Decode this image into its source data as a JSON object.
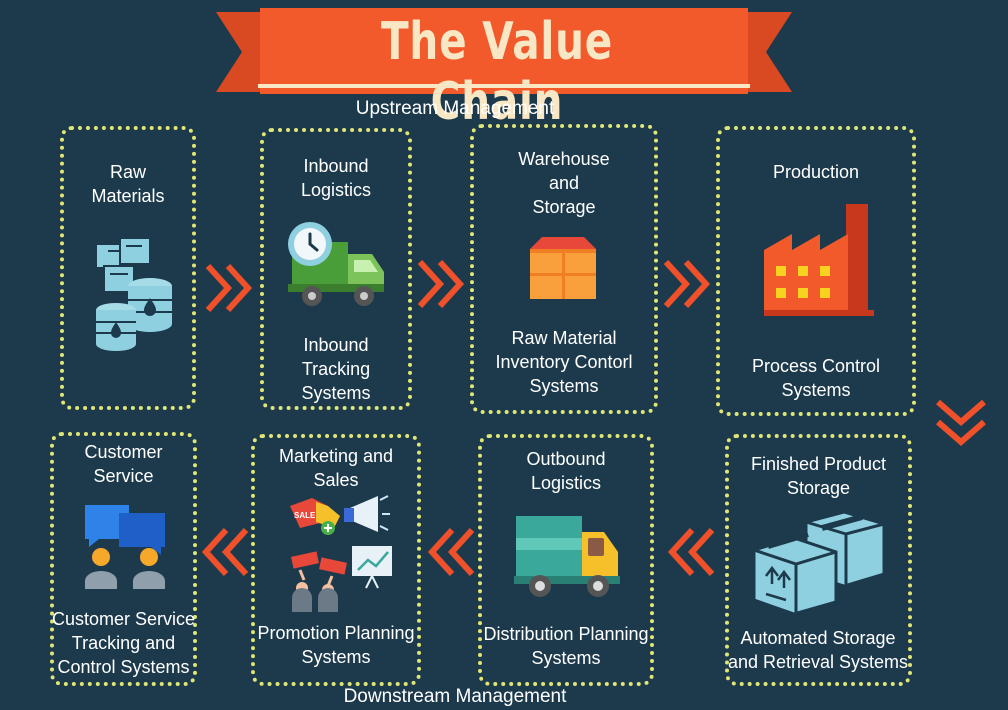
{
  "title": "The Value Chain",
  "sections": {
    "upstream": "Upstream Management",
    "downstream": "Downstream Management"
  },
  "stages": {
    "raw_materials": {
      "title": [
        "Raw",
        "Materials"
      ]
    },
    "inbound": {
      "title": [
        "Inbound",
        "Logistics"
      ],
      "system": [
        "Inbound",
        "Tracking",
        "Systems"
      ]
    },
    "warehouse": {
      "title": [
        "Warehouse",
        "and",
        "Storage"
      ],
      "system": [
        "Raw Material",
        "Inventory Contorl",
        "Systems"
      ]
    },
    "production": {
      "title": [
        "Production"
      ],
      "system": [
        "Process Control",
        "Systems"
      ]
    },
    "finished": {
      "title": [
        "Finished Product",
        "Storage"
      ],
      "system": [
        "Automated Storage",
        "and Retrieval Systems"
      ]
    },
    "outbound": {
      "title": [
        "Outbound",
        "Logistics"
      ],
      "system": [
        "Distribution Planning",
        "Systems"
      ]
    },
    "marketing": {
      "title": [
        "Marketing and",
        "Sales"
      ],
      "system": [
        "Promotion Planning",
        "Systems"
      ]
    },
    "customer": {
      "title": [
        "Customer",
        "Service"
      ],
      "system": [
        "Customer Service",
        "Tracking and",
        "Control Systems"
      ]
    }
  },
  "icon_text": {
    "sale_tag": "SALE"
  },
  "colors": {
    "background": "#1d3a4c",
    "banner": "#f25a2c",
    "box_border": "#dfe675",
    "chevron": "#f0502a",
    "title_text": "#f8e7c4"
  },
  "icons": [
    "boxes-barrels-icon",
    "truck-clock-icon",
    "warehouse-boxes-icon",
    "factory-icon",
    "storage-boxes-icon",
    "delivery-truck-icon",
    "marketing-collage-icon",
    "chat-people-icon",
    "chevron-right-icon",
    "chevron-down-icon",
    "chevron-left-icon"
  ]
}
